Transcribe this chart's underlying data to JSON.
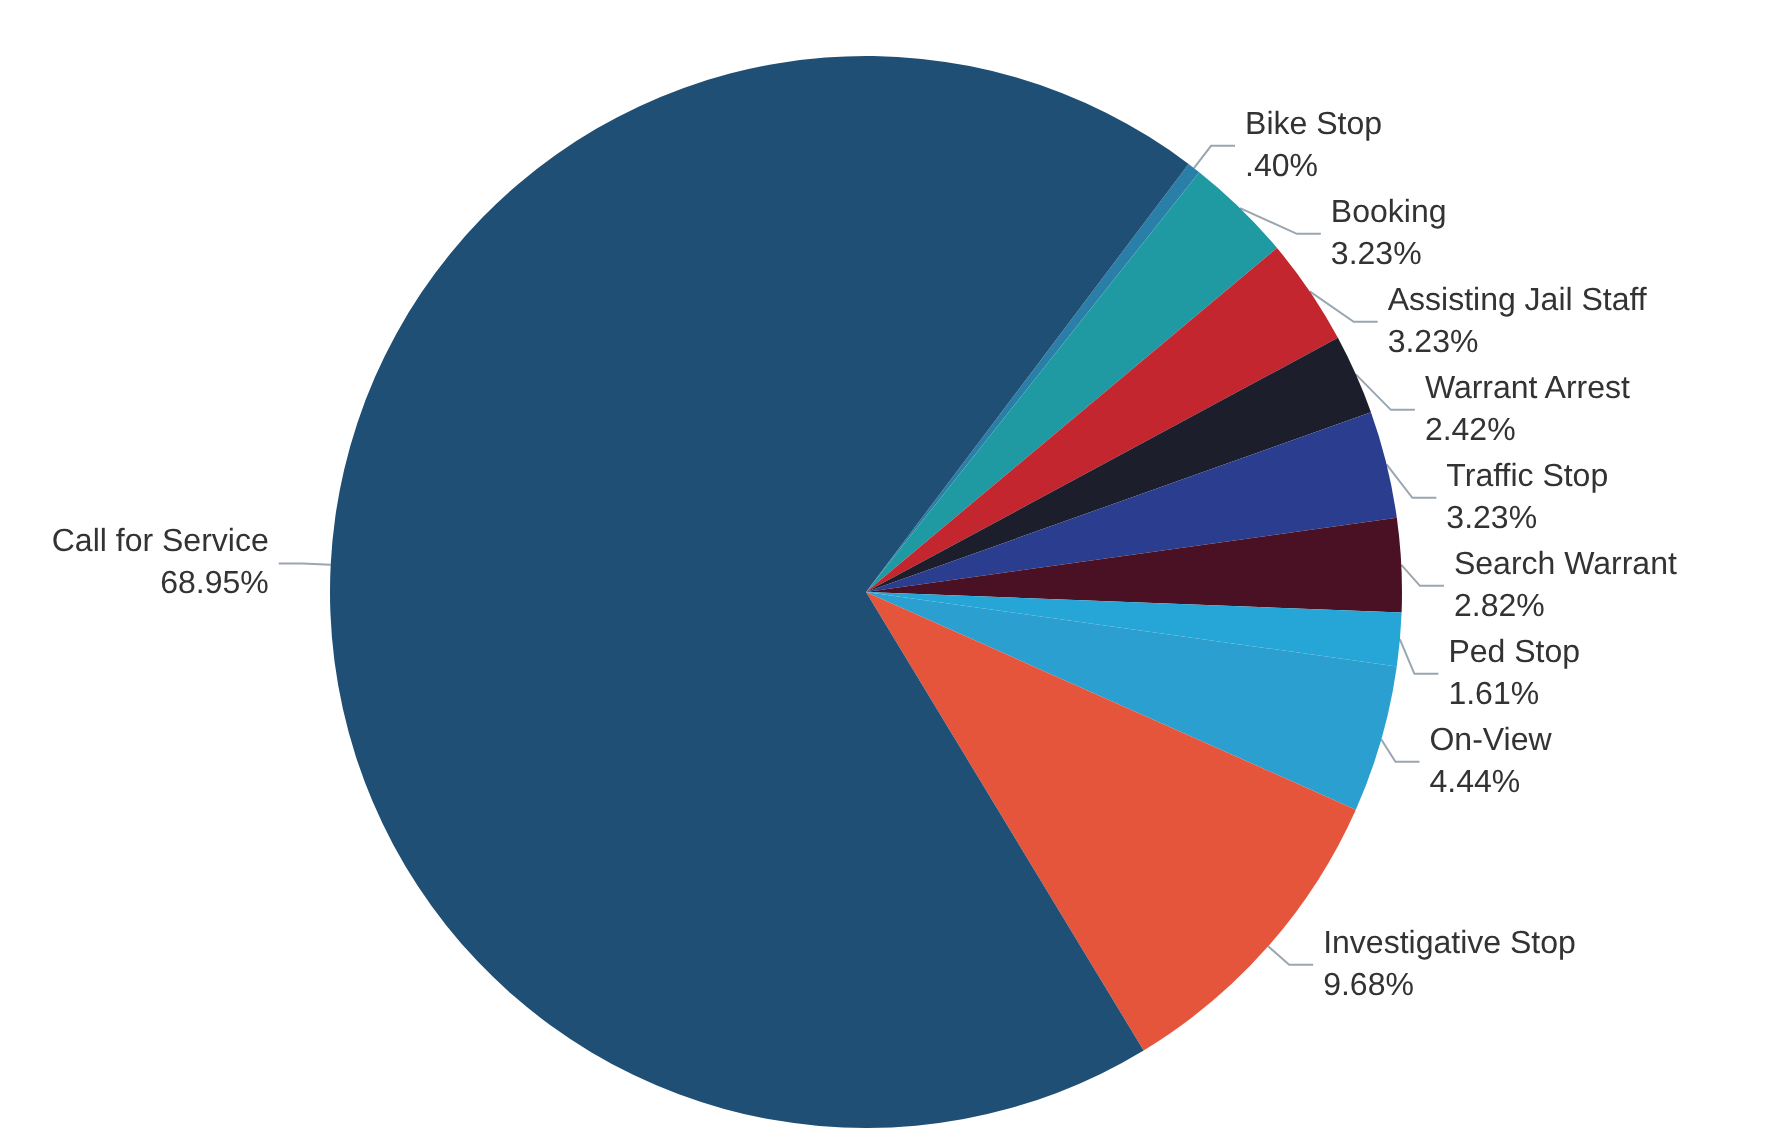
{
  "chart_data": {
    "type": "pie",
    "categories": [
      "Bike Stop",
      "Booking",
      "Assisting Jail Staff",
      "Warrant Arrest",
      "Traffic Stop",
      "Search Warrant",
      "Ped Stop",
      "On-View",
      "Investigative Stop",
      "Call for Service"
    ],
    "values": [
      0.4,
      3.23,
      3.23,
      2.42,
      3.23,
      2.82,
      1.61,
      4.44,
      9.68,
      68.95
    ],
    "value_labels": [
      ".40%",
      "3.23%",
      "3.23%",
      "2.42%",
      "3.23%",
      "2.82%",
      "1.61%",
      "4.44%",
      "9.68%",
      "68.95%"
    ],
    "colors": [
      "#2a7fa8",
      "#1f9aa3",
      "#c3262e",
      "#1c1f2b",
      "#2b3d8e",
      "#4a1024",
      "#26a6d6",
      "#2b9fcf",
      "#e4553b",
      "#1f4f74"
    ]
  }
}
